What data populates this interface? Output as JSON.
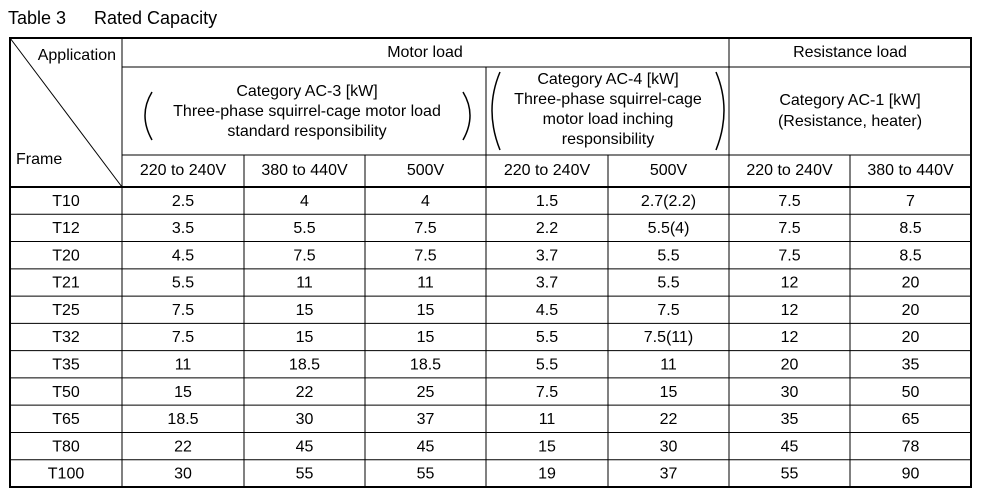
{
  "caption": {
    "number": "Table 3",
    "title": "Rated Capacity"
  },
  "table": {
    "corner": {
      "top": "Application",
      "bottom": "Frame"
    },
    "groups": [
      "Motor load",
      "Resistance load"
    ],
    "categories": [
      {
        "title": "Category AC-3 [kW]",
        "lines": [
          "Three-phase squirrel-cage motor load",
          "standard responsibility"
        ]
      },
      {
        "title": "Category AC-4 [kW]",
        "lines": [
          "Three-phase squirrel-cage",
          "motor load inching",
          "responsibility"
        ]
      },
      {
        "title": "Category AC-1 [kW]",
        "lines": [
          "(Resistance, heater)"
        ]
      }
    ],
    "voltages": [
      "220 to 240V",
      "380 to 440V",
      "500V",
      "220 to 240V",
      "500V",
      "220 to 240V",
      "380 to 440V"
    ],
    "rows": [
      [
        "T10",
        "2.5",
        "4",
        "4",
        "1.5",
        "2.7(2.2)",
        "7.5",
        "7"
      ],
      [
        "T12",
        "3.5",
        "5.5",
        "7.5",
        "2.2",
        "5.5(4)",
        "7.5",
        "8.5"
      ],
      [
        "T20",
        "4.5",
        "7.5",
        "7.5",
        "3.7",
        "5.5",
        "7.5",
        "8.5"
      ],
      [
        "T21",
        "5.5",
        "11",
        "11",
        "3.7",
        "5.5",
        "12",
        "20"
      ],
      [
        "T25",
        "7.5",
        "15",
        "15",
        "4.5",
        "7.5",
        "12",
        "20"
      ],
      [
        "T32",
        "7.5",
        "15",
        "15",
        "5.5",
        "7.5(11)",
        "12",
        "20"
      ],
      [
        "T35",
        "11",
        "18.5",
        "18.5",
        "5.5",
        "11",
        "20",
        "35"
      ],
      [
        "T50",
        "15",
        "22",
        "25",
        "7.5",
        "15",
        "30",
        "50"
      ],
      [
        "T65",
        "18.5",
        "30",
        "37",
        "11",
        "22",
        "35",
        "65"
      ],
      [
        "T80",
        "22",
        "45",
        "45",
        "15",
        "30",
        "45",
        "78"
      ],
      [
        "T100",
        "30",
        "55",
        "55",
        "19",
        "37",
        "55",
        "90"
      ]
    ]
  }
}
